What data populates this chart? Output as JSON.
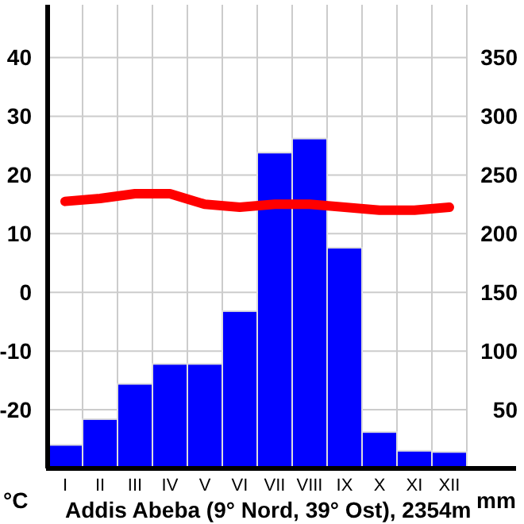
{
  "chart_data": {
    "type": "bar",
    "title": "Addis Abeba (9° Nord, 39° Ost), 2354m",
    "ylabel": "°C",
    "y2label": "mm",
    "categories": [
      "I",
      "II",
      "III",
      "IV",
      "V",
      "VI",
      "VII",
      "VIII",
      "IX",
      "X",
      "XI",
      "XII"
    ],
    "series": [
      {
        "axis": "y2",
        "color": "#0000ff",
        "values": [
          20,
          42,
          72,
          89,
          89,
          134,
          269,
          281,
          188,
          31,
          15,
          14
        ]
      },
      {
        "type": "line",
        "axis": "y",
        "color": "#ff0000",
        "values": [
          15.5,
          16,
          16.8,
          16.8,
          15,
          14.5,
          15,
          15,
          14.5,
          14,
          14,
          14.5
        ]
      }
    ],
    "ylim": [
      -30,
      49
    ],
    "yticks": [
      -20,
      -10,
      0,
      10,
      20,
      30,
      40
    ],
    "y2lim": [
      0,
      395
    ],
    "y2ticks": [
      50,
      100,
      150,
      200,
      250,
      300,
      350
    ],
    "grid": true,
    "marker": "none",
    "line_style": "solid"
  }
}
